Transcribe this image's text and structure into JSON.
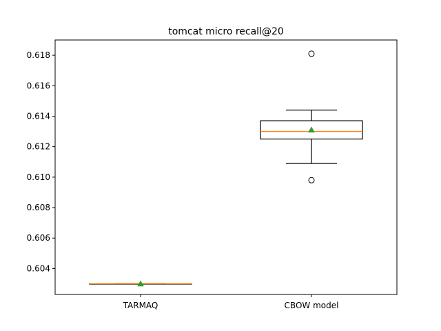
{
  "chart_data": {
    "type": "box",
    "title": "tomcat micro recall@20",
    "xlabel": "",
    "ylabel": "",
    "categories": [
      "TARMAQ",
      "CBOW model"
    ],
    "ylim": [
      0.6023,
      0.619
    ],
    "yticks": [
      0.604,
      0.606,
      0.608,
      0.61,
      0.612,
      0.614,
      0.616,
      0.618
    ],
    "ytick_labels": [
      "0.604",
      "0.606",
      "0.608",
      "0.610",
      "0.612",
      "0.614",
      "0.616",
      "0.618"
    ],
    "grid": false,
    "series": [
      {
        "category": "TARMAQ",
        "whisker_low": 0.603,
        "q1": 0.603,
        "median": 0.603,
        "q3": 0.603,
        "whisker_high": 0.603,
        "mean": 0.603,
        "outliers": []
      },
      {
        "category": "CBOW model",
        "whisker_low": 0.6109,
        "q1": 0.6125,
        "median": 0.613,
        "q3": 0.6137,
        "whisker_high": 0.6144,
        "mean": 0.6131,
        "outliers": [
          0.6181,
          0.6098
        ]
      }
    ],
    "colors": {
      "box": "#000000",
      "median": "#ff7f0e",
      "mean": "#2ca02c"
    }
  }
}
